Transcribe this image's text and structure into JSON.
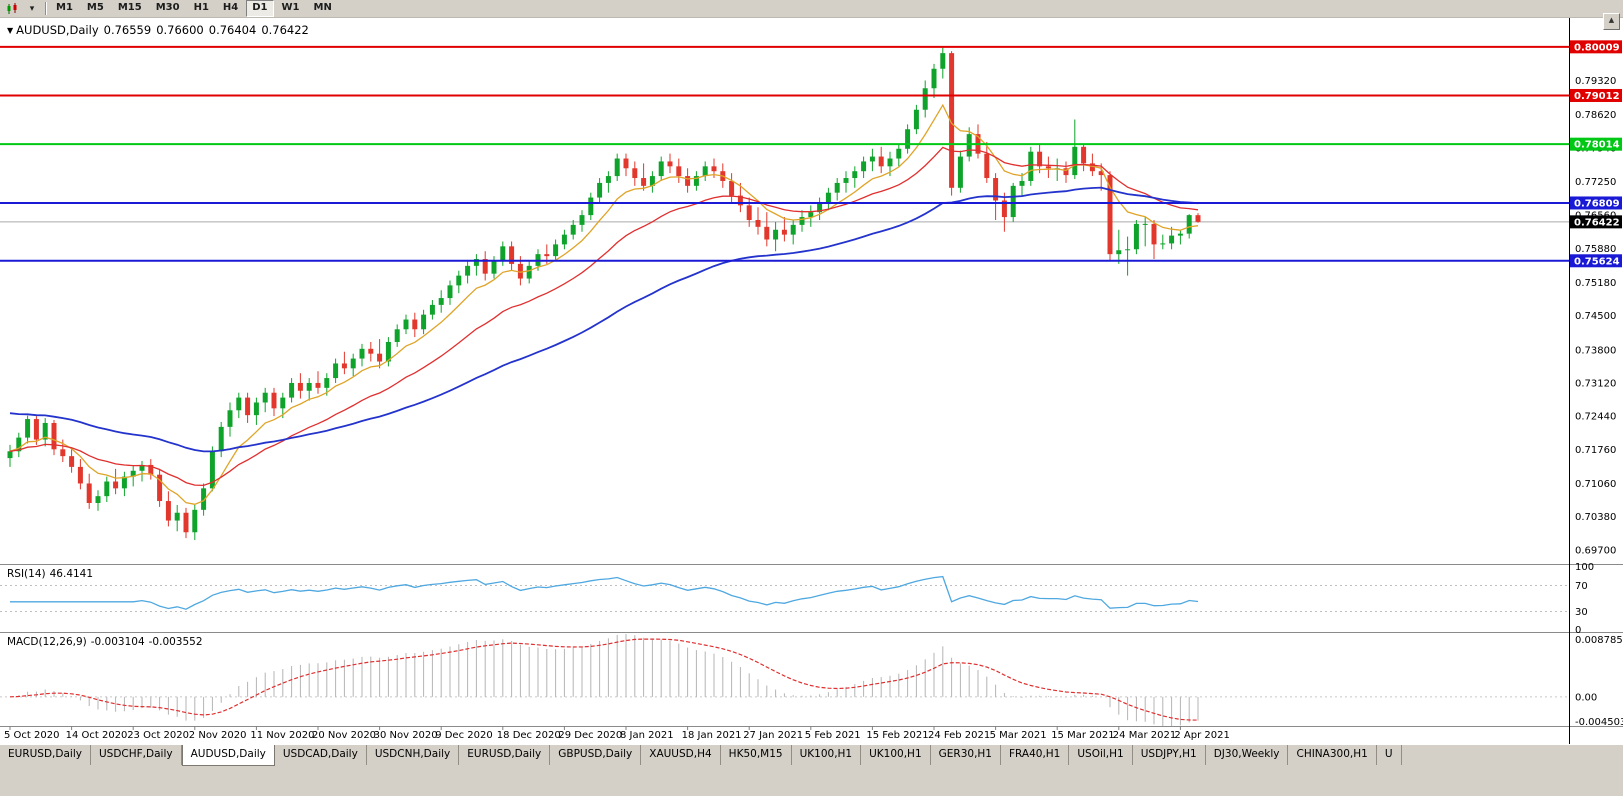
{
  "icons": {
    "dropdown_caret": "▾",
    "scroll_up": "▲"
  },
  "toolbar": {
    "timeframes": [
      "M1",
      "M5",
      "M15",
      "M30",
      "H1",
      "H4",
      "D1",
      "W1",
      "MN"
    ],
    "active": "D1"
  },
  "chart": {
    "collapse_arrow": "▼",
    "symbol_timeframe": "AUDUSD,Daily",
    "open": "0.76559",
    "high": "0.76600",
    "low": "0.76404",
    "close": "0.76422"
  },
  "colors": {
    "up": "#0FA32B",
    "down": "#E2372C",
    "window_gray": "#d4d0c8",
    "chart_bg": "#ffffff"
  },
  "chart_data": {
    "type": "candlestick",
    "title": "AUDUSD,Daily",
    "ylim": [
      0.6943,
      0.806
    ],
    "y_ticks": [
      "0.79320",
      "0.78620",
      "0.77940",
      "0.77250",
      "0.76560",
      "0.75880",
      "0.75180",
      "0.74500",
      "0.73800",
      "0.73120",
      "0.72440",
      "0.71760",
      "0.71060",
      "0.70380",
      "0.69700"
    ],
    "x_labels": [
      "5 Oct 2020",
      "14 Oct 2020",
      "23 Oct 2020",
      "2 Nov 2020",
      "11 Nov 2020",
      "20 Nov 2020",
      "30 Nov 2020",
      "9 Dec 2020",
      "18 Dec 2020",
      "29 Dec 2020",
      "8 Jan 2021",
      "18 Jan 2021",
      "27 Jan 2021",
      "5 Feb 2021",
      "15 Feb 2021",
      "24 Feb 2021",
      "5 Mar 2021",
      "15 Mar 2021",
      "24 Mar 2021",
      "2 Apr 2021"
    ],
    "label_interval": 7,
    "candles": [
      [
        0.7158,
        0.7185,
        0.714,
        0.7172
      ],
      [
        0.7172,
        0.721,
        0.716,
        0.72
      ],
      [
        0.72,
        0.7245,
        0.7188,
        0.7238
      ],
      [
        0.7238,
        0.7244,
        0.7185,
        0.7196
      ],
      [
        0.7196,
        0.724,
        0.7182,
        0.723
      ],
      [
        0.723,
        0.7236,
        0.7164,
        0.7176
      ],
      [
        0.7176,
        0.7196,
        0.715,
        0.7162
      ],
      [
        0.7162,
        0.718,
        0.7128,
        0.714
      ],
      [
        0.714,
        0.7156,
        0.7094,
        0.7106
      ],
      [
        0.7106,
        0.7126,
        0.7054,
        0.7066
      ],
      [
        0.7066,
        0.7092,
        0.705,
        0.708
      ],
      [
        0.708,
        0.712,
        0.7068,
        0.711
      ],
      [
        0.711,
        0.7136,
        0.7084,
        0.7096
      ],
      [
        0.7096,
        0.713,
        0.708,
        0.712
      ],
      [
        0.712,
        0.7142,
        0.71,
        0.7132
      ],
      [
        0.7132,
        0.7152,
        0.711,
        0.7144
      ],
      [
        0.7144,
        0.7156,
        0.7114,
        0.7124
      ],
      [
        0.7124,
        0.7136,
        0.7058,
        0.707
      ],
      [
        0.707,
        0.709,
        0.7018,
        0.703
      ],
      [
        0.703,
        0.7062,
        0.7008,
        0.7046
      ],
      [
        0.7046,
        0.7056,
        0.6994,
        0.7006
      ],
      [
        0.7006,
        0.7062,
        0.699,
        0.7052
      ],
      [
        0.7052,
        0.7106,
        0.704,
        0.7096
      ],
      [
        0.7096,
        0.7182,
        0.709,
        0.7172
      ],
      [
        0.7172,
        0.7232,
        0.716,
        0.7222
      ],
      [
        0.7222,
        0.7272,
        0.7202,
        0.7256
      ],
      [
        0.7256,
        0.7292,
        0.724,
        0.7282
      ],
      [
        0.7282,
        0.7292,
        0.723,
        0.7246
      ],
      [
        0.7246,
        0.7282,
        0.7226,
        0.7272
      ],
      [
        0.7272,
        0.7302,
        0.7252,
        0.7292
      ],
      [
        0.7292,
        0.7302,
        0.7244,
        0.726
      ],
      [
        0.726,
        0.7292,
        0.724,
        0.7282
      ],
      [
        0.7282,
        0.7322,
        0.7272,
        0.7312
      ],
      [
        0.7312,
        0.7332,
        0.728,
        0.7296
      ],
      [
        0.7296,
        0.7322,
        0.7276,
        0.7312
      ],
      [
        0.7312,
        0.7336,
        0.729,
        0.7302
      ],
      [
        0.7302,
        0.7332,
        0.7286,
        0.7322
      ],
      [
        0.7322,
        0.7362,
        0.7312,
        0.7352
      ],
      [
        0.7352,
        0.7376,
        0.733,
        0.7342
      ],
      [
        0.7342,
        0.7372,
        0.7326,
        0.7362
      ],
      [
        0.7362,
        0.7392,
        0.7346,
        0.7382
      ],
      [
        0.7382,
        0.7396,
        0.7356,
        0.7372
      ],
      [
        0.7372,
        0.7402,
        0.7342,
        0.7356
      ],
      [
        0.7356,
        0.7406,
        0.7346,
        0.7396
      ],
      [
        0.7396,
        0.7432,
        0.7386,
        0.7422
      ],
      [
        0.7422,
        0.7452,
        0.7412,
        0.7442
      ],
      [
        0.7442,
        0.7456,
        0.7406,
        0.7422
      ],
      [
        0.7422,
        0.7462,
        0.7412,
        0.7452
      ],
      [
        0.7452,
        0.7482,
        0.7442,
        0.7472
      ],
      [
        0.7472,
        0.7502,
        0.7456,
        0.7486
      ],
      [
        0.7486,
        0.7522,
        0.7472,
        0.7512
      ],
      [
        0.7512,
        0.7542,
        0.7496,
        0.7532
      ],
      [
        0.7532,
        0.7562,
        0.7516,
        0.7552
      ],
      [
        0.7552,
        0.7576,
        0.7532,
        0.7566
      ],
      [
        0.7566,
        0.7582,
        0.7522,
        0.7536
      ],
      [
        0.7536,
        0.7572,
        0.7526,
        0.7562
      ],
      [
        0.7562,
        0.7602,
        0.7552,
        0.7592
      ],
      [
        0.7592,
        0.7602,
        0.7542,
        0.7556
      ],
      [
        0.7556,
        0.7572,
        0.7512,
        0.7526
      ],
      [
        0.7526,
        0.7562,
        0.7516,
        0.7552
      ],
      [
        0.7552,
        0.7586,
        0.7542,
        0.7576
      ],
      [
        0.7576,
        0.7596,
        0.7556,
        0.7572
      ],
      [
        0.7572,
        0.7606,
        0.7562,
        0.7596
      ],
      [
        0.7596,
        0.7626,
        0.7586,
        0.7616
      ],
      [
        0.7616,
        0.7646,
        0.7606,
        0.7636
      ],
      [
        0.7636,
        0.7666,
        0.7622,
        0.7656
      ],
      [
        0.7656,
        0.7702,
        0.7646,
        0.7692
      ],
      [
        0.7692,
        0.7732,
        0.7682,
        0.7722
      ],
      [
        0.7722,
        0.7746,
        0.7702,
        0.7736
      ],
      [
        0.7736,
        0.7782,
        0.7726,
        0.7772
      ],
      [
        0.7772,
        0.7782,
        0.7736,
        0.7752
      ],
      [
        0.7752,
        0.7766,
        0.7716,
        0.7732
      ],
      [
        0.7732,
        0.7762,
        0.7706,
        0.7716
      ],
      [
        0.7716,
        0.7746,
        0.7702,
        0.7736
      ],
      [
        0.7736,
        0.7776,
        0.7726,
        0.7766
      ],
      [
        0.7766,
        0.7782,
        0.7742,
        0.7756
      ],
      [
        0.7756,
        0.7772,
        0.7722,
        0.7736
      ],
      [
        0.7736,
        0.7752,
        0.7702,
        0.7716
      ],
      [
        0.7716,
        0.7746,
        0.7706,
        0.7736
      ],
      [
        0.7736,
        0.7766,
        0.7726,
        0.7756
      ],
      [
        0.7756,
        0.7772,
        0.7732,
        0.7746
      ],
      [
        0.7746,
        0.7762,
        0.7712,
        0.7726
      ],
      [
        0.7726,
        0.7742,
        0.7682,
        0.7696
      ],
      [
        0.7696,
        0.7722,
        0.7662,
        0.7676
      ],
      [
        0.7676,
        0.7692,
        0.7632,
        0.7646
      ],
      [
        0.7646,
        0.7672,
        0.7616,
        0.7632
      ],
      [
        0.7632,
        0.7662,
        0.7592,
        0.7606
      ],
      [
        0.7606,
        0.7642,
        0.7582,
        0.7626
      ],
      [
        0.7626,
        0.7652,
        0.7602,
        0.7616
      ],
      [
        0.7616,
        0.7646,
        0.7596,
        0.7636
      ],
      [
        0.7636,
        0.7666,
        0.7622,
        0.7652
      ],
      [
        0.7652,
        0.7676,
        0.7632,
        0.7662
      ],
      [
        0.7662,
        0.7692,
        0.7646,
        0.7682
      ],
      [
        0.7682,
        0.7712,
        0.7666,
        0.7702
      ],
      [
        0.7702,
        0.7732,
        0.7686,
        0.7722
      ],
      [
        0.7722,
        0.7746,
        0.7702,
        0.7732
      ],
      [
        0.7732,
        0.7756,
        0.7712,
        0.7746
      ],
      [
        0.7746,
        0.7776,
        0.7732,
        0.7766
      ],
      [
        0.7766,
        0.7792,
        0.7746,
        0.7776
      ],
      [
        0.7776,
        0.7796,
        0.7742,
        0.7756
      ],
      [
        0.7756,
        0.7786,
        0.7736,
        0.7772
      ],
      [
        0.7772,
        0.7802,
        0.7756,
        0.7792
      ],
      [
        0.7792,
        0.7842,
        0.7782,
        0.7832
      ],
      [
        0.7832,
        0.7882,
        0.7822,
        0.7872
      ],
      [
        0.7872,
        0.7932,
        0.7856,
        0.7916
      ],
      [
        0.7916,
        0.7966,
        0.7896,
        0.7956
      ],
      [
        0.7956,
        0.8,
        0.7936,
        0.7988
      ],
      [
        0.7988,
        0.7992,
        0.7696,
        0.7712
      ],
      [
        0.7712,
        0.7788,
        0.7702,
        0.7776
      ],
      [
        0.7776,
        0.7836,
        0.7766,
        0.7822
      ],
      [
        0.7822,
        0.7842,
        0.7772,
        0.7782
      ],
      [
        0.7782,
        0.7806,
        0.7722,
        0.7732
      ],
      [
        0.7732,
        0.7742,
        0.7646,
        0.7686
      ],
      [
        0.7686,
        0.7702,
        0.7622,
        0.7652
      ],
      [
        0.7652,
        0.7722,
        0.7642,
        0.7716
      ],
      [
        0.7716,
        0.7742,
        0.7696,
        0.7726
      ],
      [
        0.7726,
        0.7796,
        0.7716,
        0.7786
      ],
      [
        0.7786,
        0.7802,
        0.7742,
        0.7756
      ],
      [
        0.7756,
        0.7776,
        0.7732,
        0.7752
      ],
      [
        0.7752,
        0.7772,
        0.7726,
        0.7752
      ],
      [
        0.7752,
        0.7766,
        0.7722,
        0.7738
      ],
      [
        0.7738,
        0.7852,
        0.773,
        0.7796
      ],
      [
        0.7796,
        0.7802,
        0.7746,
        0.7762
      ],
      [
        0.7762,
        0.7782,
        0.7736,
        0.7746
      ],
      [
        0.7746,
        0.7762,
        0.7706,
        0.7738
      ],
      [
        0.7738,
        0.7746,
        0.7562,
        0.7576
      ],
      [
        0.7576,
        0.7626,
        0.7556,
        0.7584
      ],
      [
        0.7584,
        0.7612,
        0.7532,
        0.7586
      ],
      [
        0.7586,
        0.7646,
        0.7576,
        0.7638
      ],
      [
        0.7638,
        0.7652,
        0.7592,
        0.7638
      ],
      [
        0.7638,
        0.7646,
        0.7566,
        0.7596
      ],
      [
        0.7596,
        0.7616,
        0.7586,
        0.7598
      ],
      [
        0.7598,
        0.7632,
        0.7586,
        0.7614
      ],
      [
        0.7614,
        0.7626,
        0.7596,
        0.7618
      ],
      [
        0.7618,
        0.7658,
        0.7608,
        0.7656
      ],
      [
        0.76559,
        0.766,
        0.76404,
        0.76422
      ]
    ],
    "overlays": [
      {
        "name": "ma-fast-line",
        "period": 8,
        "color": "#DFA428",
        "width": 1.3
      },
      {
        "name": "ma-medium-line",
        "period": 21,
        "color": "#E02F2F",
        "width": 1.3
      },
      {
        "name": "ma-slow-line",
        "period": 55,
        "color": "#2333CC",
        "width": 1.8,
        "seed": 0.725
      }
    ],
    "hlines": [
      {
        "label": "0.80009",
        "value": 0.80009,
        "color": "#E00000"
      },
      {
        "label": "0.79012",
        "value": 0.79012,
        "color": "#E00000"
      },
      {
        "label": "0.78014",
        "value": 0.78014,
        "color": "#00C814"
      },
      {
        "label": "0.76809",
        "value": 0.76809,
        "color": "#1A1AD6"
      },
      {
        "label": "0.75624",
        "value": 0.75624,
        "color": "#1A1AD6"
      }
    ],
    "current_price": {
      "label": "0.76422",
      "value": 0.76422,
      "bg": "#000000"
    }
  },
  "indicators": {
    "rsi": {
      "label": "RSI(14)",
      "value": "46.4141",
      "period": 14,
      "axis_labels": [
        "100",
        "70",
        "30",
        "0"
      ],
      "upper_level": 70,
      "lower_level": 30,
      "color": "#4FA8E0"
    },
    "macd": {
      "label": "MACD(12,26,9)",
      "main_value": "-0.003104",
      "signal_value": "-0.003552",
      "fast": 12,
      "slow": 26,
      "signal": 9,
      "axis_labels": [
        "0.008785",
        "0.00",
        "-0.004503"
      ],
      "hist_color": "#B4B4B4",
      "signal_color": "#E02F2F"
    }
  },
  "tabs": {
    "active_index": 2,
    "items": [
      "EURUSD,Daily",
      "USDCHF,Daily",
      "AUDUSD,Daily",
      "USDCAD,Daily",
      "USDCNH,Daily",
      "EURUSD,Daily",
      "GBPUSD,Daily",
      "XAUUSD,H4",
      "HK50,M15",
      "UK100,H1",
      "UK100,H1",
      "GER30,H1",
      "FRA40,H1",
      "USOil,H1",
      "USDJPY,H1",
      "DJ30,Weekly",
      "CHINA300,H1",
      "U"
    ]
  }
}
